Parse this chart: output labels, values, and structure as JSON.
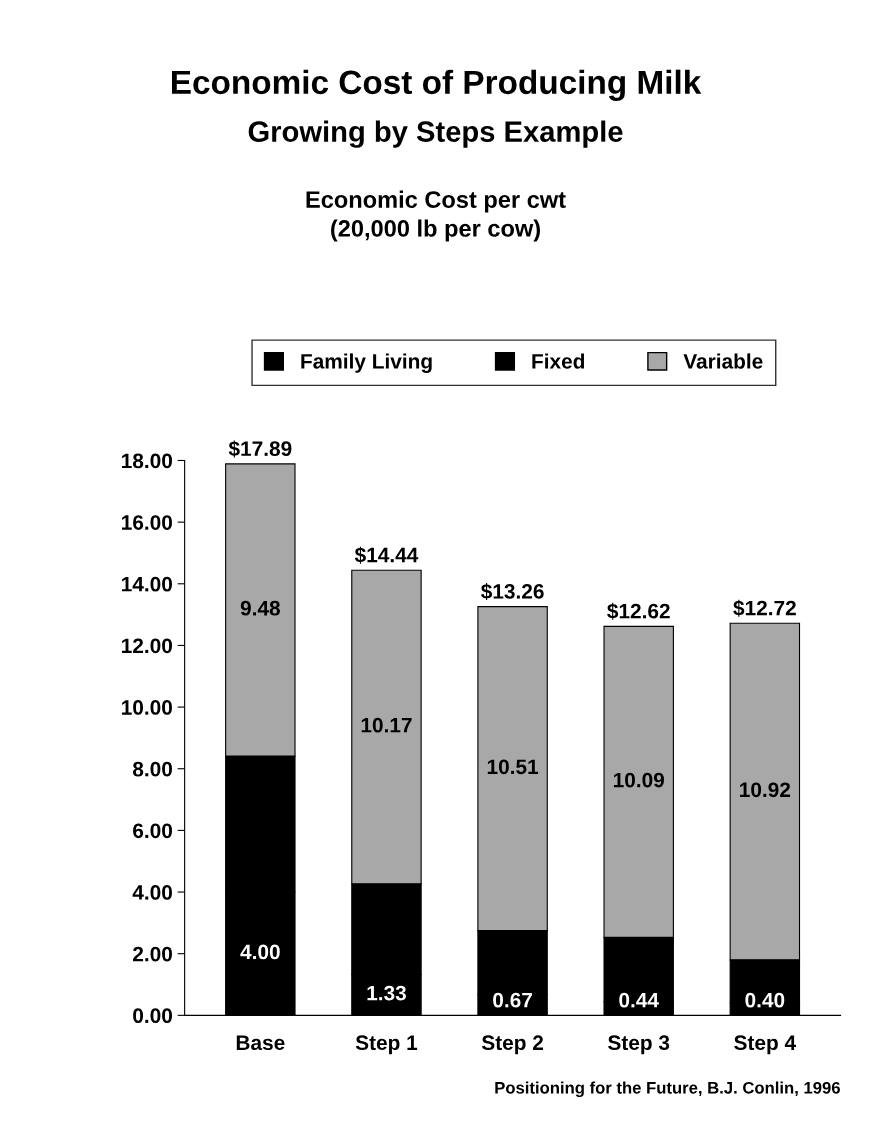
{
  "chart_data": {
    "type": "bar",
    "title": "Economic Cost of Producing Milk",
    "subtitle": "Growing by Steps Example",
    "annotations": [
      "Economic Cost per cwt\n(20,000 lb per cow)",
      "Positioning for the Future, B.J. Conlin, 1996"
    ],
    "categories": [
      "Base",
      "Step 1",
      "Step 2",
      "Step 3",
      "Step 4"
    ],
    "stacked": true,
    "series": [
      {
        "name": "Family Living",
        "color": "#000000",
        "values": [
          4.0,
          1.33,
          0.67,
          0.44,
          0.4
        ],
        "value_labels": [
          "4.00",
          "1.33",
          "0.67",
          "0.44",
          "0.40"
        ]
      },
      {
        "name": "Fixed",
        "color": "#000000",
        "values": [
          4.41,
          2.94,
          2.08,
          2.09,
          1.4
        ]
      },
      {
        "name": "Variable",
        "color": "#a8a8a8",
        "values": [
          9.48,
          10.17,
          10.51,
          10.09,
          10.92
        ],
        "value_labels": [
          "9.48",
          "10.17",
          "10.51",
          "10.09",
          "10.92"
        ]
      }
    ],
    "totals": [
      "$17.89",
      "$14.44",
      "$13.26",
      "$12.62",
      "$12.72"
    ],
    "ylim": [
      0,
      18
    ],
    "yticks": [
      {
        "value": 0,
        "label": "0.00"
      },
      {
        "value": 2,
        "label": "2.00"
      },
      {
        "value": 4,
        "label": "4.00"
      },
      {
        "value": 6,
        "label": "6.00"
      },
      {
        "value": 8,
        "label": "8.00"
      },
      {
        "value": 10,
        "label": "10.00"
      },
      {
        "value": 12,
        "label": "12.00"
      },
      {
        "value": 14,
        "label": "14.00"
      },
      {
        "value": 16,
        "label": "16.00"
      },
      {
        "value": 18,
        "label": "18.00"
      }
    ],
    "legend": "top",
    "grid": false
  }
}
